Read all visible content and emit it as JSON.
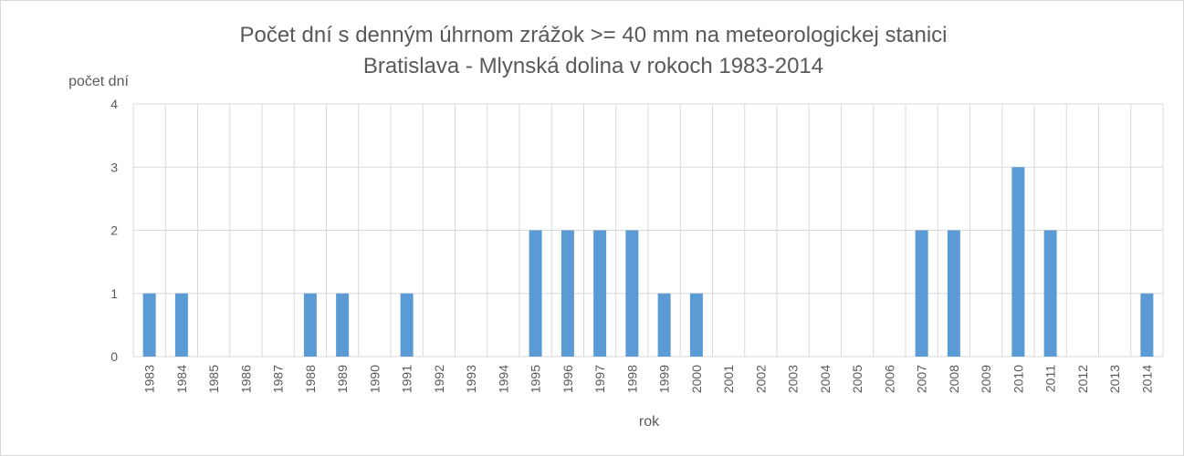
{
  "chart_data": {
    "type": "bar",
    "title": [
      "Počet dní s denným úhrnom zrážok >= 40 mm na meteorologickej stanici",
      "Bratislava  - Mlynská dolina v rokoch 1983-2014"
    ],
    "xlabel": "rok",
    "ylabel": "počet dní",
    "ylim": [
      0,
      4
    ],
    "yticks": [
      0,
      1,
      2,
      3,
      4
    ],
    "grid": true,
    "categories": [
      "1983",
      "1984",
      "1985",
      "1986",
      "1987",
      "1988",
      "1989",
      "1990",
      "1991",
      "1992",
      "1993",
      "1994",
      "1995",
      "1996",
      "1997",
      "1998",
      "1999",
      "2000",
      "2001",
      "2002",
      "2003",
      "2004",
      "2005",
      "2006",
      "2007",
      "2008",
      "2009",
      "2010",
      "2011",
      "2012",
      "2013",
      "2014"
    ],
    "values": [
      1,
      1,
      0,
      0,
      0,
      1,
      1,
      0,
      1,
      0,
      0,
      0,
      2,
      2,
      2,
      2,
      1,
      1,
      0,
      0,
      0,
      0,
      0,
      0,
      2,
      2,
      0,
      3,
      2,
      0,
      0,
      1
    ],
    "bar_color": "#5b9bd5",
    "grid_color": "#d9d9d9"
  }
}
